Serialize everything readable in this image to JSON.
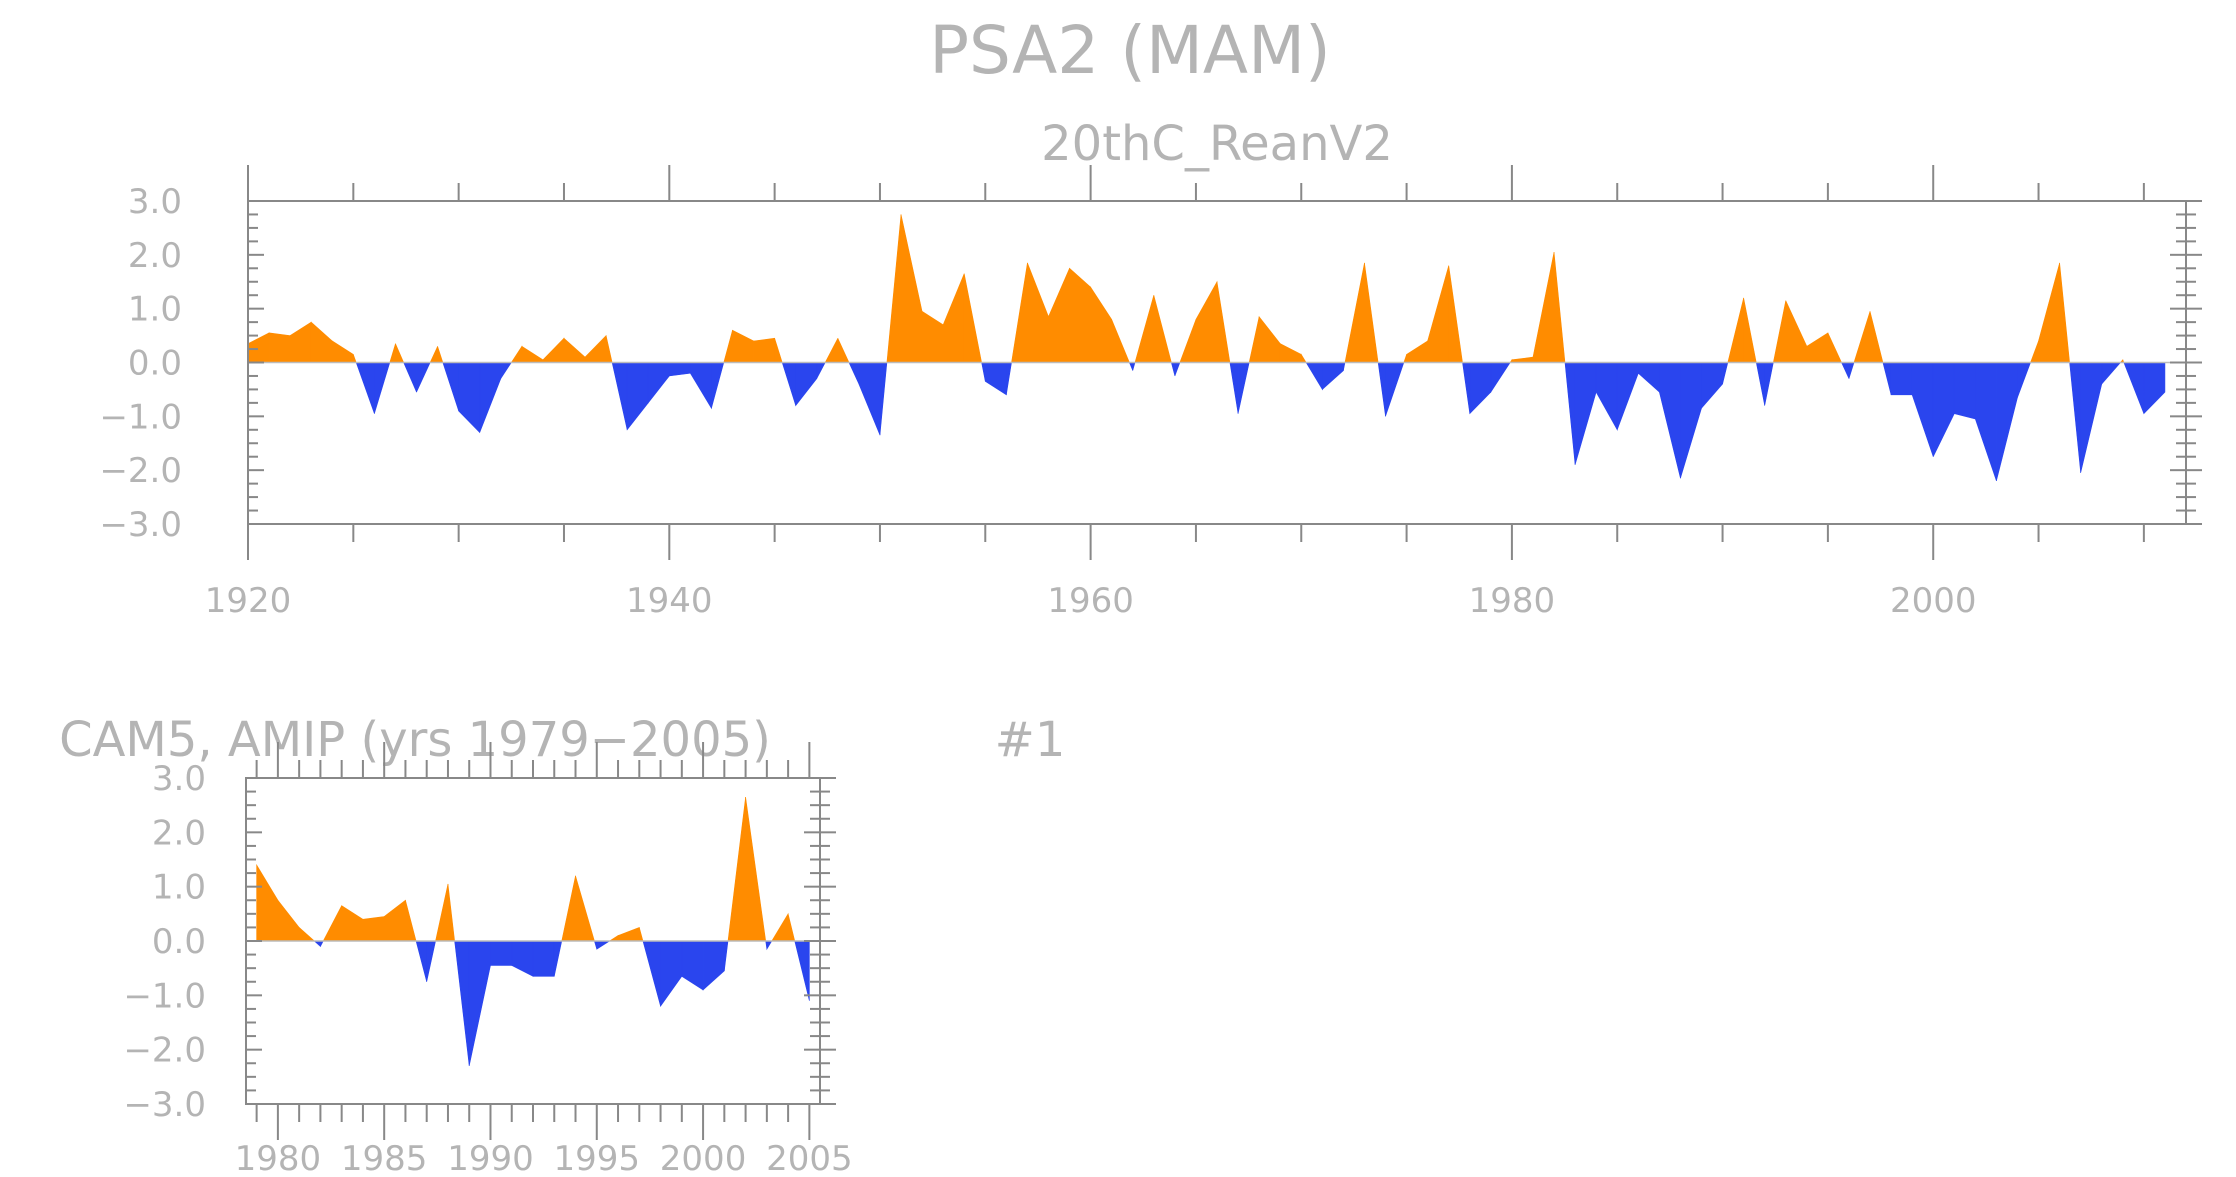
{
  "figure": {
    "title": "PSA2 (MAM)",
    "colors": {
      "positive": "#ff8c00",
      "negative": "#2a45ee",
      "text": "#b4b4b4",
      "axis": "#888888"
    }
  },
  "chart_data": [
    {
      "type": "area",
      "title": "20thC_ReanV2",
      "xlim": [
        1920,
        2012
      ],
      "ylim": [
        -3.0,
        3.0
      ],
      "x_ticks": [
        1920,
        1940,
        1960,
        1980,
        2000
      ],
      "x_tick_labels": [
        "1920",
        "1940",
        "1960",
        "1980",
        "2000"
      ],
      "y_ticks": [
        3.0,
        2.0,
        1.0,
        0.0,
        -1.0,
        -2.0,
        -3.0
      ],
      "y_tick_labels": [
        "3.0",
        "2.0",
        "1.0",
        "0.0",
        "−1.0",
        "−2.0",
        "−3.0"
      ],
      "grid": false,
      "x": [
        1920,
        1921,
        1922,
        1923,
        1924,
        1925,
        1926,
        1927,
        1928,
        1929,
        1930,
        1931,
        1932,
        1933,
        1934,
        1935,
        1936,
        1937,
        1938,
        1939,
        1940,
        1941,
        1942,
        1943,
        1944,
        1945,
        1946,
        1947,
        1948,
        1949,
        1950,
        1951,
        1952,
        1953,
        1954,
        1955,
        1956,
        1957,
        1958,
        1959,
        1960,
        1961,
        1962,
        1963,
        1964,
        1965,
        1966,
        1967,
        1968,
        1969,
        1970,
        1971,
        1972,
        1973,
        1974,
        1975,
        1976,
        1977,
        1978,
        1979,
        1980,
        1981,
        1982,
        1983,
        1984,
        1985,
        1986,
        1987,
        1988,
        1989,
        1990,
        1991,
        1992,
        1993,
        1994,
        1995,
        1996,
        1997,
        1998,
        1999,
        2000,
        2001,
        2002,
        2003,
        2004,
        2005,
        2006,
        2007,
        2008,
        2009,
        2010,
        2011
      ],
      "values": [
        0.35,
        0.55,
        0.5,
        0.75,
        0.4,
        0.15,
        -0.95,
        0.35,
        -0.55,
        0.3,
        -0.9,
        -1.3,
        -0.3,
        0.3,
        0.05,
        0.45,
        0.1,
        0.5,
        -1.25,
        -0.75,
        -0.25,
        -0.2,
        -0.85,
        0.6,
        0.4,
        0.45,
        -0.8,
        -0.3,
        0.45,
        -0.4,
        -1.35,
        2.75,
        0.95,
        0.7,
        1.65,
        -0.35,
        -0.6,
        1.85,
        0.85,
        1.75,
        1.4,
        0.8,
        -0.15,
        1.25,
        -0.25,
        0.8,
        1.5,
        -0.95,
        0.85,
        0.35,
        0.15,
        -0.5,
        -0.15,
        1.85,
        -1.0,
        0.15,
        0.4,
        1.8,
        -0.95,
        -0.55,
        0.05,
        0.1,
        2.05,
        -1.9,
        -0.55,
        -1.25,
        -0.2,
        -0.55,
        -2.15,
        -0.85,
        -0.4,
        1.2,
        -0.8,
        1.15,
        0.3,
        0.55,
        -0.3,
        0.95,
        -0.6,
        -0.6,
        -1.75,
        -0.95,
        -1.05,
        -2.2,
        -0.65,
        0.4,
        1.85,
        -2.05,
        -0.4,
        0.05,
        -0.95,
        -0.55
      ]
    },
    {
      "type": "area",
      "title": "CAM5, AMIP (yrs 1979−2005)",
      "annotation": "#1",
      "xlim": [
        1978.5,
        2005.5
      ],
      "ylim": [
        -3.0,
        3.0
      ],
      "x_ticks": [
        1980,
        1985,
        1990,
        1995,
        2000,
        2005
      ],
      "x_tick_labels": [
        "1980",
        "1985",
        "1990",
        "1995",
        "2000",
        "2005"
      ],
      "y_ticks": [
        3.0,
        2.0,
        1.0,
        0.0,
        -1.0,
        -2.0,
        -3.0
      ],
      "y_tick_labels": [
        "3.0",
        "2.0",
        "1.0",
        "0.0",
        "−1.0",
        "−2.0",
        "−3.0"
      ],
      "grid": false,
      "x": [
        1979,
        1980,
        1981,
        1982,
        1983,
        1984,
        1985,
        1986,
        1987,
        1988,
        1989,
        1990,
        1991,
        1992,
        1993,
        1994,
        1995,
        1996,
        1997,
        1998,
        1999,
        2000,
        2001,
        2002,
        2003,
        2004,
        2005
      ],
      "values": [
        1.4,
        0.75,
        0.25,
        -0.1,
        0.65,
        0.4,
        0.45,
        0.75,
        -0.75,
        1.05,
        -2.3,
        -0.45,
        -0.45,
        -0.65,
        -0.65,
        1.2,
        -0.15,
        0.1,
        0.25,
        -1.2,
        -0.65,
        -0.9,
        -0.55,
        2.65,
        -0.15,
        0.5,
        -1.1
      ]
    }
  ]
}
